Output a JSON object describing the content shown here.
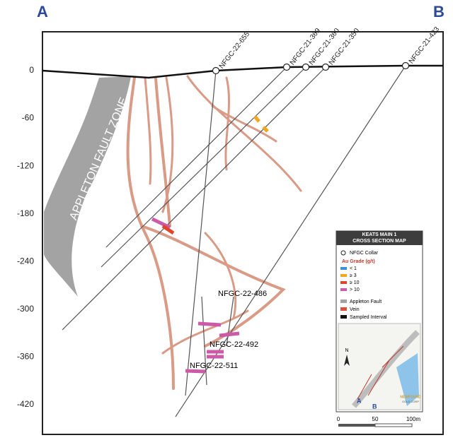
{
  "section_ends": {
    "left": "A",
    "right": "B"
  },
  "depth_labels": [
    0,
    -60,
    -120,
    -180,
    -240,
    -300,
    -360,
    -420
  ],
  "fault_label": "APPLETON FAULT ZONE",
  "drill_holes": [
    "NFGC-22-655",
    "NFGC-21-369",
    "NFGC-21-360",
    "NFGC-21-350",
    "NFGC-21-423"
  ],
  "intercept_labels": [
    "NFGC-22-486",
    "NFGC-22-492",
    "NFGC-22-511"
  ],
  "legend": {
    "title_1": "KEATS MAIN 1",
    "title_2": "CROSS SECTION MAP",
    "collar": "NFGC Collar",
    "grade_title": "Au Grade (g/t)",
    "grades": [
      "< 1",
      "≥ 3",
      "≥ 10",
      "> 10"
    ],
    "fault": "Appleton Fault",
    "vein": "Vein",
    "sampled": "Sampled Interval",
    "north": "N",
    "inset_a": "A",
    "inset_b": "B",
    "company_1": "NEWFOUND",
    "company_2": "GOLD CORP"
  },
  "scale_bar": [
    "0",
    "50",
    "100m"
  ]
}
